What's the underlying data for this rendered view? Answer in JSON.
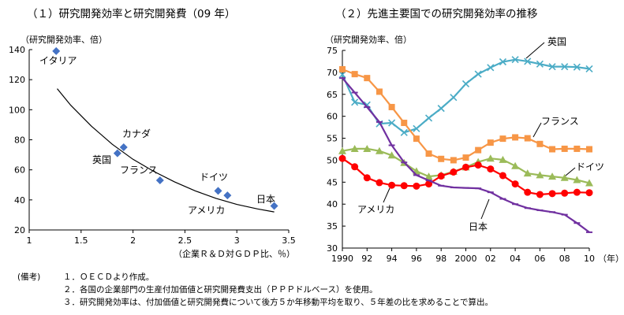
{
  "notes": {
    "label": "(備考)",
    "items": [
      "１．ＯＥＣＤより作成。",
      "２．各国の企業部門の生産付加価値と研究開発費支出（ＰＰＰドルベース）を使用。",
      "３．研究開発効率は、付加価値と研究開発費について後方５か年移動平均を取り、５年差の比を求めることで算出。"
    ]
  },
  "chart_data": [
    {
      "type": "scatter",
      "title": "（１）研究開発効率と研究開発費（09 年）",
      "ylabel": "（研究開発効率、倍）",
      "xlabel": "（企業Ｒ＆Ｄ対ＧＤＰ比、％）",
      "xlim": [
        1,
        3.5
      ],
      "ylim": [
        20,
        140
      ],
      "xticks": [
        "1",
        "1.5",
        "2",
        "2.5",
        "3",
        "3.5"
      ],
      "yticks": [
        "20",
        "40",
        "60",
        "80",
        "100",
        "120",
        "140"
      ],
      "marker_color": "#4472C4",
      "points": [
        {
          "label": "イタリア",
          "x": 1.26,
          "y": 139
        },
        {
          "label": "英国",
          "x": 1.85,
          "y": 71
        },
        {
          "label": "カナダ",
          "x": 1.91,
          "y": 75
        },
        {
          "label": "フランス",
          "x": 2.26,
          "y": 53
        },
        {
          "label": "ドイツ",
          "x": 2.82,
          "y": 46
        },
        {
          "label": "",
          "x": 2.91,
          "y": 43
        },
        {
          "label": "日本",
          "x": 3.36,
          "y": 36
        }
      ],
      "annotations": [
        "イタリア",
        "カナダ",
        "英国",
        "フランス",
        "ドイツ",
        "アメリカ",
        "日本"
      ],
      "trendline": {
        "x": [
          1.27,
          1.4,
          1.6,
          1.8,
          2.0,
          2.2,
          2.4,
          2.6,
          2.8,
          3.0,
          3.2,
          3.36
        ],
        "y": [
          114,
          103,
          89,
          77,
          67,
          59,
          52,
          46,
          41,
          37,
          34,
          32
        ]
      }
    },
    {
      "type": "line",
      "title": "（２）先進主要国での研究開発効率の推移",
      "ylabel": "（研究開発効率、倍）",
      "xlabel": "（年）",
      "ylim": [
        30,
        75
      ],
      "yticks": [
        "30",
        "35",
        "40",
        "45",
        "50",
        "55",
        "60",
        "65",
        "70",
        "75"
      ],
      "xlim": [
        1990,
        2010
      ],
      "xticks": [
        {
          "x": 1990,
          "label": "1990"
        },
        {
          "x": 1992,
          "label": "92"
        },
        {
          "x": 1994,
          "label": "94"
        },
        {
          "x": 1996,
          "label": "96"
        },
        {
          "x": 1998,
          "label": "98"
        },
        {
          "x": 2000,
          "label": "2000"
        },
        {
          "x": 2002,
          "label": "02"
        },
        {
          "x": 2004,
          "label": "04"
        },
        {
          "x": 2006,
          "label": "06"
        },
        {
          "x": 2008,
          "label": "08"
        },
        {
          "x": 2010,
          "label": "10"
        }
      ],
      "x": [
        1990,
        1991,
        1992,
        1993,
        1994,
        1995,
        1996,
        1997,
        1998,
        1999,
        2000,
        2001,
        2002,
        2003,
        2004,
        2005,
        2006,
        2007,
        2008,
        2009,
        2010
      ],
      "series": [
        {
          "name": "英国",
          "color": "#4BACC6",
          "marker": "x",
          "values": [
            69.5,
            63.2,
            62.6,
            58.3,
            58.5,
            56.3,
            57.2,
            59.6,
            61.8,
            64.3,
            67.4,
            69.6,
            71.1,
            72.4,
            72.9,
            72.5,
            71.9,
            71.3,
            71.3,
            71.2,
            70.8
          ]
        },
        {
          "name": "フランス",
          "color": "#F79646",
          "marker": "square",
          "values": [
            70.7,
            69.6,
            68.7,
            65.6,
            62.1,
            58.5,
            54.9,
            51.5,
            50.3,
            50.0,
            50.6,
            52.3,
            54.0,
            54.9,
            55.2,
            55.0,
            53.7,
            52.5,
            52.6,
            52.6,
            52.5
          ]
        },
        {
          "name": "ドイツ",
          "color": "#9BBB59",
          "marker": "triangle",
          "values": [
            52.1,
            52.6,
            52.6,
            52.1,
            51.1,
            49.4,
            47.5,
            46.3,
            46.6,
            47.4,
            48.4,
            49.6,
            50.4,
            50.1,
            48.7,
            47.0,
            46.6,
            46.3,
            46.0,
            45.5,
            44.8
          ]
        },
        {
          "name": "アメリカ",
          "color": "#FF0000",
          "marker": "circle",
          "values": [
            50.4,
            48.5,
            46.0,
            44.9,
            44.3,
            44.2,
            44.1,
            44.6,
            46.4,
            47.3,
            48.4,
            48.9,
            48.0,
            46.5,
            44.6,
            42.7,
            42.2,
            42.4,
            42.5,
            42.7,
            42.6
          ]
        },
        {
          "name": "日本",
          "color": "#7030A0",
          "marker": "dash",
          "values": [
            68.7,
            65.4,
            62.1,
            58.7,
            53.4,
            49.5,
            46.6,
            45.4,
            44.2,
            43.8,
            43.7,
            43.6,
            42.7,
            41.2,
            40.0,
            39.1,
            38.6,
            38.2,
            37.6,
            35.7,
            33.6
          ]
        }
      ]
    }
  ]
}
